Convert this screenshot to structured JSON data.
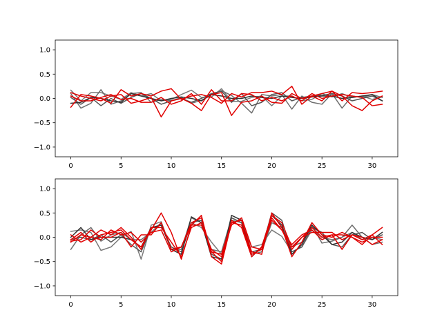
{
  "chart_data": [
    {
      "type": "line",
      "title": "",
      "xlabel": "",
      "ylabel": "",
      "xlim": [
        -1.55,
        32.55
      ],
      "ylim": [
        -1.2,
        1.2
      ],
      "xticks": [
        0,
        5,
        10,
        15,
        20,
        25,
        30
      ],
      "yticks": [
        -1.0,
        -0.5,
        0.0,
        0.5,
        1.0
      ],
      "xtick_labels": [
        "0",
        "5",
        "10",
        "15",
        "20",
        "25",
        "30"
      ],
      "ytick_labels": [
        "−1.0",
        "−0.5",
        "0.0",
        "0.5",
        "1.0"
      ],
      "grid": false,
      "x": [
        0,
        1,
        2,
        3,
        4,
        5,
        6,
        7,
        8,
        9,
        10,
        11,
        12,
        13,
        14,
        15,
        16,
        17,
        18,
        19,
        20,
        21,
        22,
        23,
        24,
        25,
        26,
        27,
        28,
        29,
        30,
        31
      ],
      "series": [
        {
          "color": "#7a7a7a",
          "values": [
            0.17,
            -0.05,
            0.12,
            0.12,
            0.05,
            -0.02,
            0.12,
            0.05,
            0.1,
            -0.05,
            -0.02,
            0.08,
            0.17,
            0.02,
            0.03,
            0.2,
            -0.06,
            -0.06,
            0.02,
            0.05,
            -0.15,
            0.05,
            0.05,
            -0.05,
            -0.02,
            0.1,
            0.03,
            0.1,
            0.02,
            0.05,
            -0.02,
            0.03
          ]
        },
        {
          "color": "#6e6e6e",
          "values": [
            0.1,
            -0.2,
            -0.1,
            0.18,
            -0.12,
            -0.05,
            0.1,
            0.12,
            -0.08,
            -0.02,
            -0.05,
            0.02,
            -0.1,
            -0.04,
            0.08,
            0.16,
            0.06,
            -0.1,
            -0.3,
            0.08,
            0.05,
            0.08,
            -0.22,
            0.05,
            -0.08,
            -0.12,
            0.1,
            -0.2,
            0.05,
            0.02,
            0.08,
            0.02
          ]
        },
        {
          "color": "#555555",
          "values": [
            0.02,
            -0.12,
            0.02,
            -0.15,
            0.0,
            -0.1,
            0.02,
            0.1,
            0.0,
            -0.12,
            -0.05,
            0.0,
            -0.08,
            0.0,
            0.1,
            0.15,
            -0.08,
            0.1,
            -0.15,
            -0.08,
            0.08,
            0.12,
            -0.05,
            0.02,
            0.05,
            0.06,
            0.1,
            0.05,
            -0.05,
            0.0,
            0.05,
            -0.05
          ]
        },
        {
          "color": "#333333",
          "values": [
            -0.1,
            -0.08,
            0.02,
            0.0,
            -0.05,
            -0.08,
            0.1,
            0.05,
            0.0,
            -0.05,
            0.0,
            0.03,
            0.0,
            -0.05,
            0.08,
            0.05,
            0.0,
            0.0,
            0.05,
            0.02,
            0.0,
            0.05,
            0.02,
            0.0,
            0.03,
            0.05,
            0.05,
            0.0,
            0.02,
            0.05,
            0.08,
            -0.05
          ]
        },
        {
          "color": "#e00000",
          "values": [
            -0.18,
            0.08,
            0.05,
            0.0,
            -0.1,
            0.18,
            0.05,
            0.1,
            0.05,
            0.15,
            0.2,
            -0.02,
            0.05,
            0.08,
            0.02,
            -0.1,
            0.1,
            0.03,
            0.12,
            0.12,
            0.15,
            0.08,
            0.25,
            -0.12,
            0.05,
            0.1,
            0.15,
            -0.05,
            0.12,
            0.1,
            0.12,
            0.15
          ]
        },
        {
          "color": "#e00000",
          "values": [
            0.12,
            0.05,
            0.0,
            -0.05,
            0.05,
            0.08,
            -0.1,
            -0.05,
            0.02,
            -0.38,
            -0.05,
            0.0,
            -0.1,
            -0.25,
            0.08,
            0.12,
            -0.35,
            -0.08,
            -0.05,
            0.05,
            -0.08,
            -0.1,
            0.1,
            0.0,
            0.05,
            -0.05,
            0.15,
            0.05,
            -0.15,
            -0.25,
            -0.05,
            0.05
          ]
        },
        {
          "color": "#e00000",
          "values": [
            0.05,
            -0.05,
            -0.05,
            0.02,
            0.08,
            -0.02,
            0.0,
            -0.08,
            -0.08,
            0.02,
            -0.12,
            -0.05,
            0.1,
            -0.12,
            0.18,
            -0.05,
            -0.05,
            0.1,
            0.08,
            -0.05,
            0.02,
            -0.05,
            0.05,
            -0.05,
            0.1,
            0.0,
            0.05,
            0.08,
            0.05,
            0.02,
            -0.15,
            -0.12
          ]
        }
      ]
    },
    {
      "type": "line",
      "title": "",
      "xlabel": "",
      "ylabel": "",
      "xlim": [
        -1.55,
        32.55
      ],
      "ylim": [
        -1.2,
        1.2
      ],
      "xticks": [
        0,
        5,
        10,
        15,
        20,
        25,
        30
      ],
      "yticks": [
        -1.0,
        -0.5,
        0.0,
        0.5,
        1.0
      ],
      "xtick_labels": [
        "0",
        "5",
        "10",
        "15",
        "20",
        "25",
        "30"
      ],
      "ytick_labels": [
        "−1.0",
        "−0.5",
        "0.0",
        "0.5",
        "1.0"
      ],
      "grid": false,
      "x": [
        0,
        1,
        2,
        3,
        4,
        5,
        6,
        7,
        8,
        9,
        10,
        11,
        12,
        13,
        14,
        15,
        16,
        17,
        18,
        19,
        20,
        21,
        22,
        23,
        24,
        25,
        26,
        27,
        28,
        29,
        30,
        31
      ],
      "series": [
        {
          "color": "#7a7a7a",
          "values": [
            0.12,
            0.15,
            0.1,
            -0.27,
            -0.2,
            0.0,
            0.12,
            -0.45,
            0.25,
            0.32,
            -0.25,
            -0.2,
            0.3,
            0.2,
            -0.1,
            -0.35,
            0.35,
            0.3,
            -0.2,
            -0.15,
            0.15,
            0.02,
            -0.3,
            -0.2,
            0.15,
            0.0,
            -0.05,
            0.0,
            0.1,
            -0.05,
            0.0,
            -0.05
          ]
        },
        {
          "color": "#6e6e6e",
          "values": [
            -0.25,
            0.05,
            0.2,
            -0.08,
            0.05,
            0.1,
            -0.05,
            -0.05,
            0.1,
            0.3,
            -0.25,
            -0.25,
            0.4,
            0.3,
            -0.25,
            -0.3,
            0.4,
            0.3,
            -0.35,
            -0.3,
            0.3,
            0.2,
            -0.2,
            -0.1,
            0.25,
            -0.12,
            -0.08,
            0.0,
            0.25,
            0.0,
            -0.15,
            -0.1
          ]
        },
        {
          "color": "#555555",
          "values": [
            -0.05,
            0.0,
            -0.05,
            0.05,
            -0.1,
            0.05,
            -0.15,
            -0.3,
            0.2,
            0.25,
            -0.2,
            -0.3,
            0.3,
            0.35,
            -0.35,
            -0.45,
            0.4,
            0.3,
            -0.3,
            -0.25,
            0.5,
            0.35,
            -0.3,
            -0.2,
            0.2,
            0.1,
            -0.15,
            -0.2,
            0.05,
            0.1,
            -0.05,
            0.05
          ]
        },
        {
          "color": "#333333",
          "values": [
            0.0,
            0.2,
            -0.05,
            0.0,
            0.0,
            0.0,
            -0.05,
            -0.2,
            0.2,
            0.25,
            -0.25,
            -0.35,
            0.42,
            0.3,
            -0.4,
            -0.45,
            0.45,
            0.35,
            -0.4,
            -0.2,
            0.45,
            0.25,
            -0.35,
            -0.15,
            0.25,
            0.05,
            -0.15,
            -0.1,
            0.1,
            0.0,
            -0.05,
            0.1
          ]
        },
        {
          "color": "#e00000",
          "values": [
            -0.05,
            0.1,
            -0.1,
            0.05,
            0.1,
            0.15,
            -0.05,
            -0.2,
            0.15,
            0.5,
            0.1,
            -0.45,
            0.25,
            0.45,
            -0.4,
            -0.55,
            0.3,
            0.35,
            -0.3,
            -0.35,
            0.5,
            0.2,
            -0.4,
            -0.1,
            0.3,
            0.05,
            0.0,
            0.1,
            0.0,
            -0.15,
            0.05,
            0.2
          ]
        },
        {
          "color": "#e00000",
          "values": [
            -0.1,
            0.05,
            0.0,
            0.15,
            0.05,
            0.2,
            0.0,
            -0.25,
            0.2,
            0.2,
            -0.1,
            -0.4,
            0.2,
            0.3,
            -0.3,
            -0.5,
            0.35,
            0.2,
            -0.4,
            -0.2,
            0.45,
            0.3,
            -0.2,
            0.0,
            0.2,
            0.0,
            0.05,
            -0.25,
            0.05,
            0.0,
            -0.15,
            -0.05
          ]
        },
        {
          "color": "#e00000",
          "values": [
            0.05,
            -0.1,
            0.0,
            -0.05,
            0.15,
            0.05,
            0.1,
            -0.1,
            0.1,
            0.15,
            -0.3,
            -0.2,
            0.25,
            0.25,
            -0.25,
            -0.4,
            0.25,
            0.4,
            -0.2,
            -0.25,
            0.35,
            0.15,
            -0.15,
            0.05,
            0.15,
            -0.05,
            0.05,
            0.05,
            0.0,
            -0.1,
            0.0,
            0.0
          ]
        },
        {
          "color": "#e00000",
          "values": [
            -0.08,
            -0.05,
            0.15,
            0.0,
            0.0,
            0.1,
            -0.2,
            0.05,
            0.05,
            0.3,
            -0.25,
            -0.2,
            0.3,
            0.4,
            -0.3,
            -0.35,
            0.3,
            0.25,
            -0.35,
            -0.25,
            0.4,
            0.15,
            -0.25,
            0.0,
            0.1,
            0.1,
            0.1,
            -0.05,
            0.05,
            -0.05,
            0.05,
            -0.15
          ]
        }
      ]
    }
  ]
}
